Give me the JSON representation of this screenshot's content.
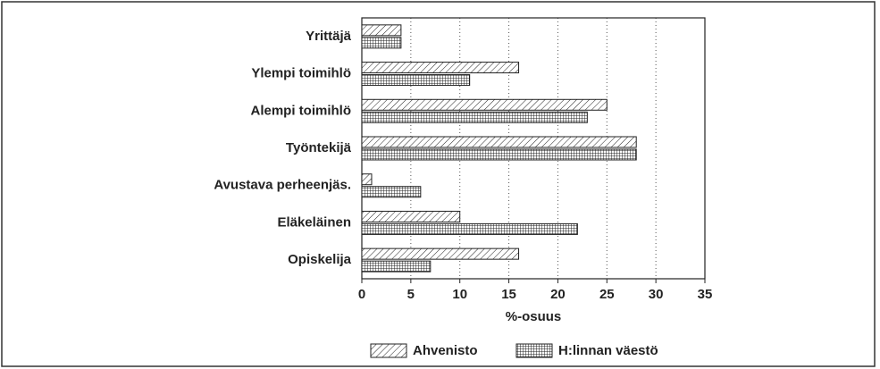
{
  "chart_data": {
    "type": "hbar",
    "categories": [
      "Yrittäjä",
      "Ylempi toimihlö",
      "Alempi toimihlö",
      "Työntekijä",
      "Avustava perheenjäs.",
      "Eläkeläinen",
      "Opiskelija"
    ],
    "series": [
      {
        "name": "Ahvenisto",
        "color": "#222222",
        "hatch": "diagonal",
        "values": [
          4,
          16,
          25,
          28,
          1,
          10,
          16
        ]
      },
      {
        "name": "H:linnan väestö",
        "color": "#222222",
        "hatch": "grid",
        "values": [
          4,
          11,
          23,
          28,
          6,
          22,
          7
        ]
      }
    ],
    "xlabel": "%-osuus",
    "xlim": [
      0,
      35
    ],
    "xticks": [
      0,
      5,
      10,
      15,
      20,
      25,
      30,
      35
    ],
    "grid": true,
    "legend": "bottom"
  }
}
